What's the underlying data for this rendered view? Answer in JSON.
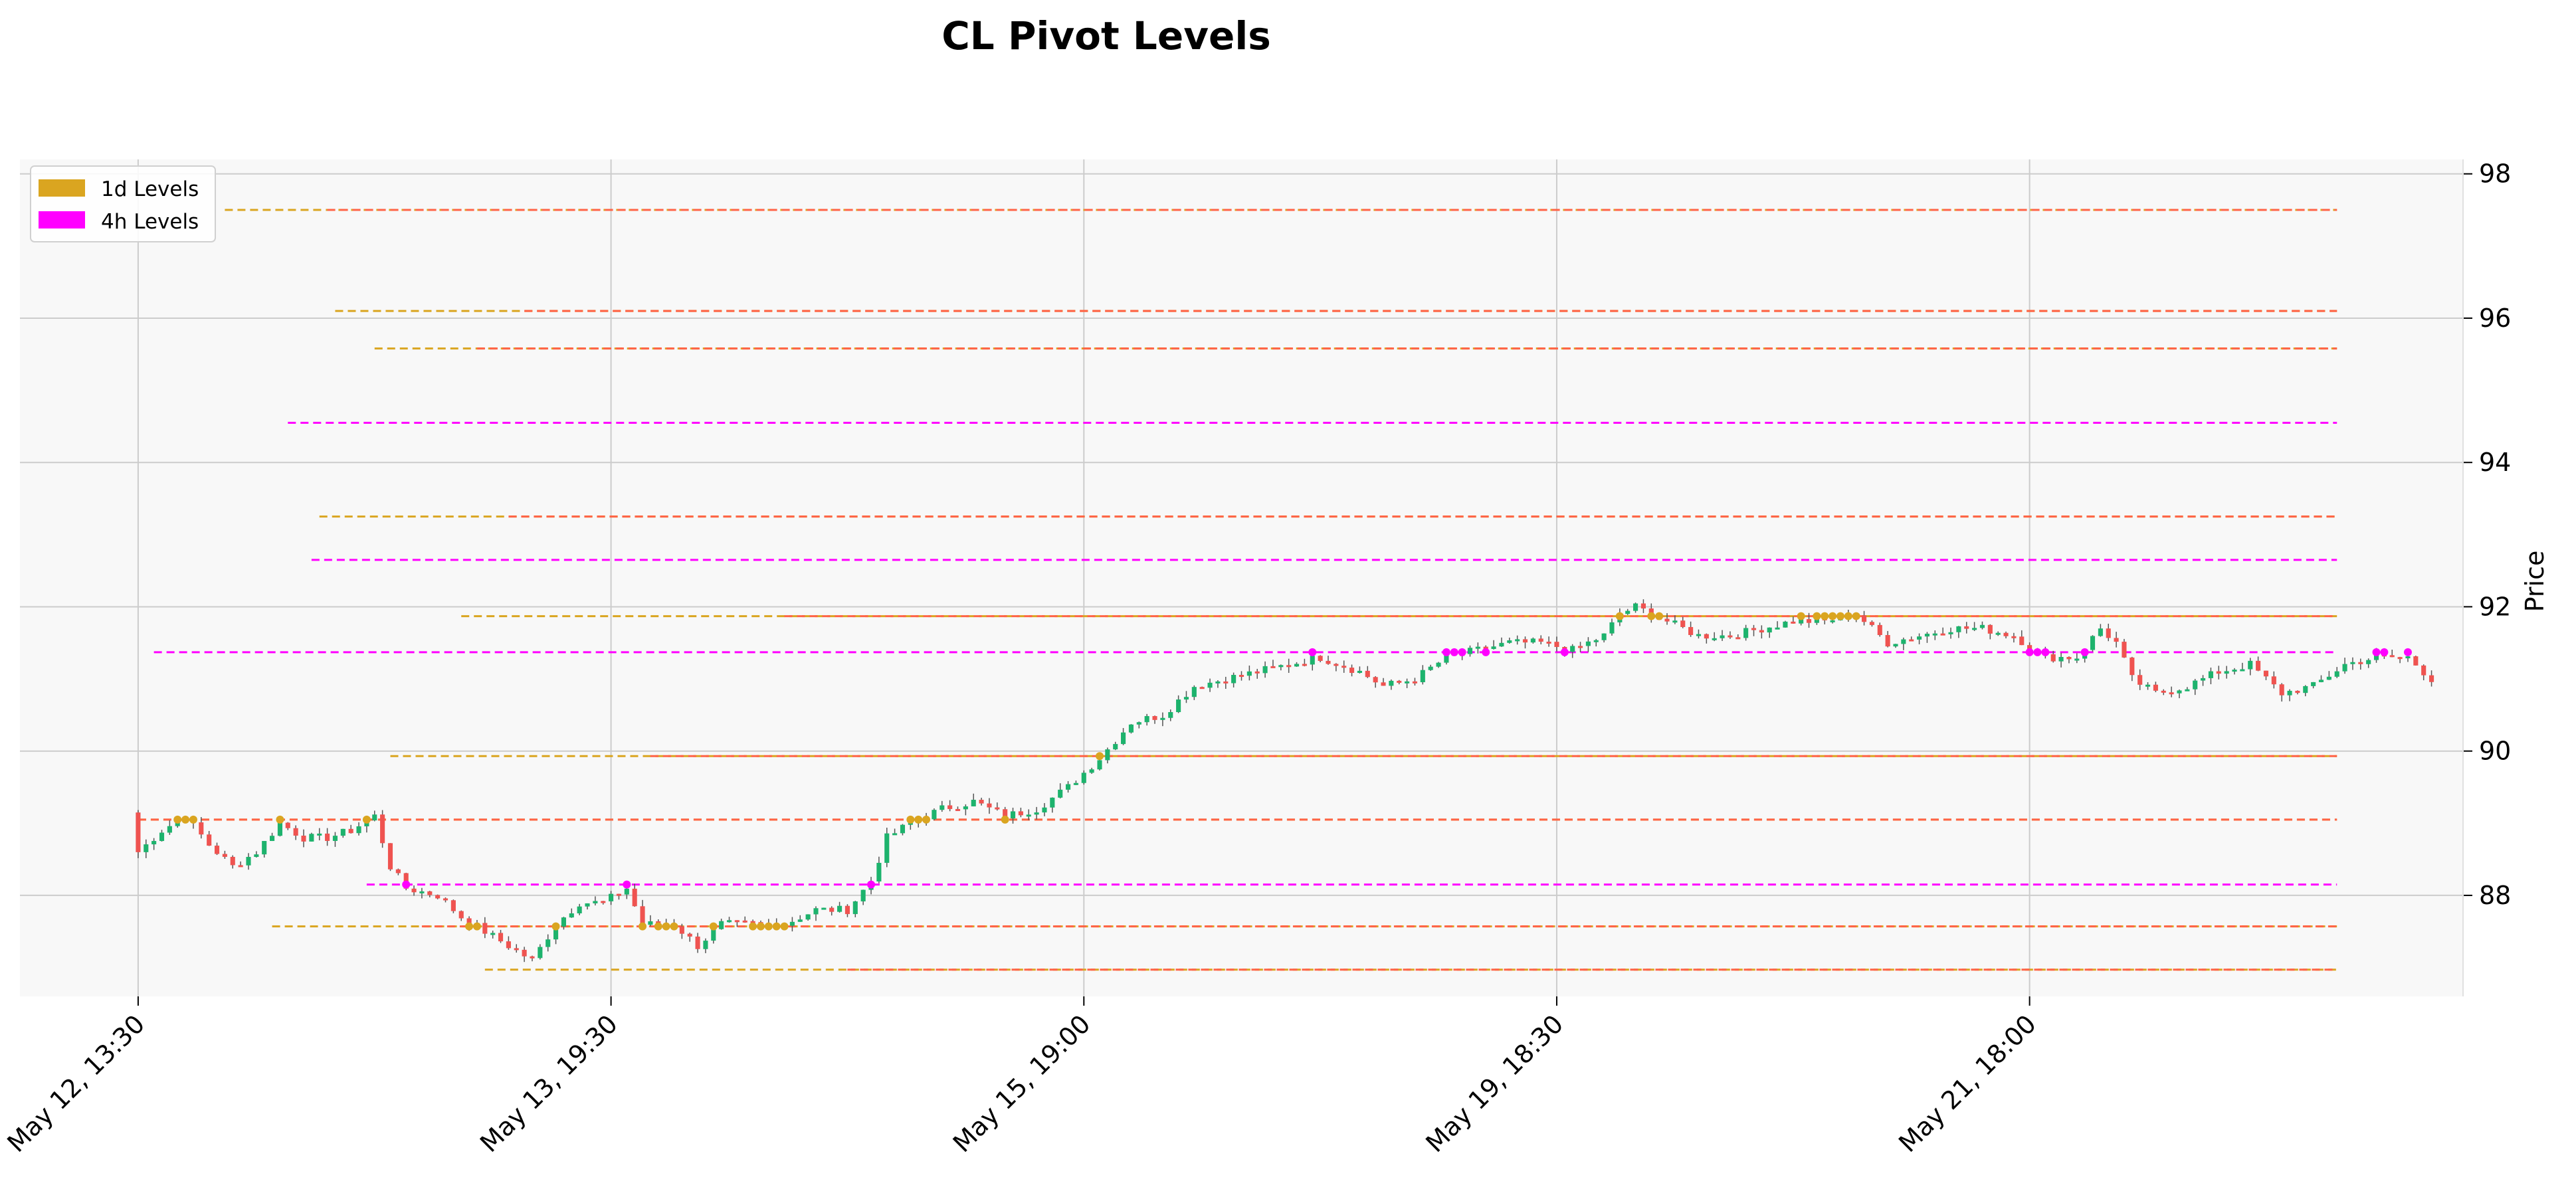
{
  "chart_data": {
    "type": "candlestick",
    "title": "CL Pivot Levels",
    "ylabel": "Price",
    "xlabel": "",
    "ylim": [
      86.6,
      98.2
    ],
    "yticks": [
      88,
      90,
      92,
      94,
      96,
      98
    ],
    "x_range": [
      -15,
      295
    ],
    "xticks": [
      {
        "index": 0,
        "label": "May 12, 13:30"
      },
      {
        "index": 60,
        "label": "May 13, 19:30"
      },
      {
        "index": 120,
        "label": "May 15, 19:00"
      },
      {
        "index": 180,
        "label": "May 19, 18:30"
      },
      {
        "index": 240,
        "label": "May 21, 18:00"
      }
    ],
    "grid": true,
    "legend_position": "top-left",
    "legend": [
      {
        "label": "1d Levels",
        "color": "#DAA520"
      },
      {
        "label": "4h Levels",
        "color": "#FF00FF"
      }
    ],
    "colors": {
      "up": "#26a69a",
      "up_alt": "#1db36d",
      "down": "#ef5350",
      "level_1d": "#DAA520",
      "level_4h": "#FF00FF",
      "level_overlap": "#FF6347",
      "plot_bg": "#F8F8F8"
    },
    "close_anchors": [
      [
        0,
        88.6
      ],
      [
        3,
        88.9
      ],
      [
        6,
        89.1
      ],
      [
        9,
        88.7
      ],
      [
        12,
        88.4
      ],
      [
        15,
        88.6
      ],
      [
        18,
        89.0
      ],
      [
        21,
        88.8
      ],
      [
        24,
        88.8
      ],
      [
        27,
        88.9
      ],
      [
        30,
        89.1
      ],
      [
        32,
        88.4
      ],
      [
        34,
        88.1
      ],
      [
        38,
        88.0
      ],
      [
        41,
        87.7
      ],
      [
        44,
        87.5
      ],
      [
        47,
        87.3
      ],
      [
        50,
        87.1
      ],
      [
        53,
        87.6
      ],
      [
        56,
        87.9
      ],
      [
        59,
        87.9
      ],
      [
        62,
        88.1
      ],
      [
        64,
        87.6
      ],
      [
        68,
        87.6
      ],
      [
        71,
        87.3
      ],
      [
        74,
        87.6
      ],
      [
        78,
        87.6
      ],
      [
        82,
        87.6
      ],
      [
        86,
        87.8
      ],
      [
        90,
        87.8
      ],
      [
        93,
        88.2
      ],
      [
        95,
        88.8
      ],
      [
        98,
        89.0
      ],
      [
        102,
        89.2
      ],
      [
        106,
        89.3
      ],
      [
        110,
        89.1
      ],
      [
        114,
        89.2
      ],
      [
        118,
        89.5
      ],
      [
        122,
        89.9
      ],
      [
        126,
        90.4
      ],
      [
        130,
        90.5
      ],
      [
        134,
        90.9
      ],
      [
        138,
        91.0
      ],
      [
        142,
        91.1
      ],
      [
        146,
        91.2
      ],
      [
        150,
        91.3
      ],
      [
        155,
        91.1
      ],
      [
        158,
        90.9
      ],
      [
        162,
        91.0
      ],
      [
        166,
        91.3
      ],
      [
        170,
        91.4
      ],
      [
        174,
        91.5
      ],
      [
        178,
        91.5
      ],
      [
        182,
        91.4
      ],
      [
        186,
        91.6
      ],
      [
        188,
        91.9
      ],
      [
        190,
        92.0
      ],
      [
        194,
        91.8
      ],
      [
        198,
        91.6
      ],
      [
        202,
        91.6
      ],
      [
        206,
        91.7
      ],
      [
        210,
        91.8
      ],
      [
        214,
        91.8
      ],
      [
        218,
        91.9
      ],
      [
        222,
        91.5
      ],
      [
        226,
        91.6
      ],
      [
        230,
        91.7
      ],
      [
        234,
        91.7
      ],
      [
        238,
        91.6
      ],
      [
        242,
        91.3
      ],
      [
        246,
        91.3
      ],
      [
        249,
        91.7
      ],
      [
        251,
        91.5
      ],
      [
        253,
        91.0
      ],
      [
        256,
        90.8
      ],
      [
        260,
        90.9
      ],
      [
        264,
        91.1
      ],
      [
        268,
        91.2
      ],
      [
        272,
        90.8
      ],
      [
        276,
        90.9
      ],
      [
        280,
        91.2
      ],
      [
        284,
        91.3
      ],
      [
        288,
        91.3
      ],
      [
        291,
        91.0
      ]
    ],
    "levels": [
      {
        "price": 97.5,
        "timeframe": "1d",
        "x_start": 11,
        "x_overlap_start": 24,
        "x_end": 279
      },
      {
        "price": 96.1,
        "timeframe": "1d",
        "x_start": 25,
        "x_overlap_start": 49,
        "x_end": 279
      },
      {
        "price": 95.58,
        "timeframe": "1d",
        "x_start": 30,
        "x_overlap_start": 43,
        "x_end": 279
      },
      {
        "price": 94.55,
        "timeframe": "4h",
        "x_start": 19,
        "x_end": 279
      },
      {
        "price": 93.25,
        "timeframe": "1d",
        "x_start": 23,
        "x_overlap_start": 47,
        "x_end": 279
      },
      {
        "price": 92.65,
        "timeframe": "4h",
        "x_start": 22,
        "x_end": 279
      },
      {
        "price": 91.87,
        "timeframe": "1d",
        "x_start": 41,
        "x_overlap_start": 82,
        "x_end": 279
      },
      {
        "price": 91.37,
        "timeframe": "4h",
        "x_start": 2,
        "x_end": 279
      },
      {
        "price": 89.93,
        "timeframe": "1d",
        "x_start": 32,
        "x_overlap_start": 65,
        "x_end": 279
      },
      {
        "price": 89.05,
        "timeframe": "1d",
        "x_start": 0,
        "x_overlap_start": 0,
        "x_end": 279
      },
      {
        "price": 88.15,
        "timeframe": "4h",
        "x_start": 29,
        "x_end": 279
      },
      {
        "price": 87.57,
        "timeframe": "1d",
        "x_start": 17,
        "x_overlap_start": 36,
        "x_end": 279
      },
      {
        "price": 86.97,
        "timeframe": "1d",
        "x_start": 44,
        "x_overlap_start": 90,
        "x_end": 279
      }
    ]
  }
}
